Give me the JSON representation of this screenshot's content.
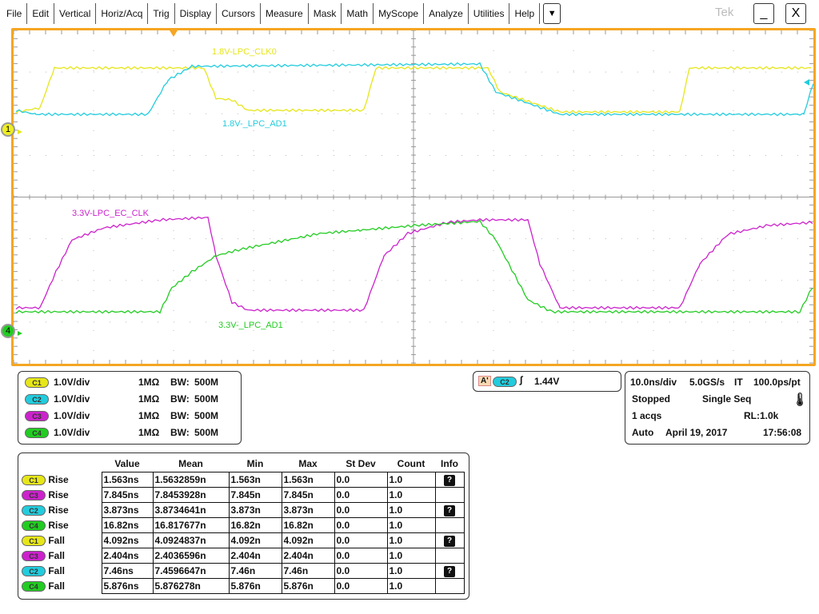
{
  "menu": [
    "File",
    "Edit",
    "Vertical",
    "Horiz/Acq",
    "Trig",
    "Display",
    "Cursors",
    "Measure",
    "Mask",
    "Math",
    "MyScope",
    "Analyze",
    "Utilities",
    "Help"
  ],
  "menu_dropdown": "▼",
  "brand": "Tek",
  "minimize": "_",
  "close": "X",
  "waveforms": {
    "c1_label": "1.8V-LPC_CLK0",
    "c2_label": "1.8V-_LPC_AD1",
    "c3_label": "3.3V-LPC_EC_CLK",
    "c4_label": "3.3V-_LPC_AD1",
    "marker1": "1",
    "marker4": "4"
  },
  "colors": {
    "c1": "#e6e619",
    "c2": "#22ccdd",
    "c3": "#cc22cc",
    "c4": "#22cc22",
    "frame": "#f5a623"
  },
  "channels": [
    {
      "id": "C1",
      "scale": "1.0V/div",
      "imp": "1MΩ",
      "bw": "500M"
    },
    {
      "id": "C2",
      "scale": "1.0V/div",
      "imp": "1MΩ",
      "bw": "500M"
    },
    {
      "id": "C3",
      "scale": "1.0V/div",
      "imp": "1MΩ",
      "bw": "500M"
    },
    {
      "id": "C4",
      "scale": "1.0V/div",
      "imp": "1MΩ",
      "bw": "500M"
    }
  ],
  "bw_prefix": "BW:",
  "trigger": {
    "mode": "A'",
    "source": "C2",
    "level": "1.44V"
  },
  "acq": {
    "timebase": "10.0ns/div",
    "rate": "5.0GS/s",
    "it": "IT",
    "ptrate": "100.0ps/pt",
    "state": "Stopped",
    "mode": "Single Seq",
    "acqs": "1 acqs",
    "rl": "RL:1.0k",
    "trig_mode": "Auto",
    "date": "April 19, 2017",
    "time": "17:56:08"
  },
  "meas": {
    "headers": [
      "Value",
      "Mean",
      "Min",
      "Max",
      "St Dev",
      "Count",
      "Info"
    ],
    "rows": [
      {
        "ch": "C1",
        "type": "Rise",
        "v": [
          "1.563ns",
          "1.5632859n",
          "1.563n",
          "1.563n",
          "0.0",
          "1.0"
        ],
        "info": true
      },
      {
        "ch": "C3",
        "type": "Rise",
        "v": [
          "7.845ns",
          "7.8453928n",
          "7.845n",
          "7.845n",
          "0.0",
          "1.0"
        ],
        "info": false
      },
      {
        "ch": "C2",
        "type": "Rise",
        "v": [
          "3.873ns",
          "3.8734641n",
          "3.873n",
          "3.873n",
          "0.0",
          "1.0"
        ],
        "info": true
      },
      {
        "ch": "C4",
        "type": "Rise",
        "v": [
          "16.82ns",
          "16.817677n",
          "16.82n",
          "16.82n",
          "0.0",
          "1.0"
        ],
        "info": false
      },
      {
        "ch": "C1",
        "type": "Fall",
        "v": [
          "4.092ns",
          "4.0924837n",
          "4.092n",
          "4.092n",
          "0.0",
          "1.0"
        ],
        "info": true
      },
      {
        "ch": "C3",
        "type": "Fall",
        "v": [
          "2.404ns",
          "2.4036596n",
          "2.404n",
          "2.404n",
          "0.0",
          "1.0"
        ],
        "info": false
      },
      {
        "ch": "C2",
        "type": "Fall",
        "v": [
          "7.46ns",
          "7.4596647n",
          "7.46n",
          "7.46n",
          "0.0",
          "1.0"
        ],
        "info": true
      },
      {
        "ch": "C4",
        "type": "Fall",
        "v": [
          "5.876ns",
          "5.876278n",
          "5.876n",
          "5.876n",
          "0.0",
          "1.0"
        ],
        "info": false
      }
    ]
  }
}
